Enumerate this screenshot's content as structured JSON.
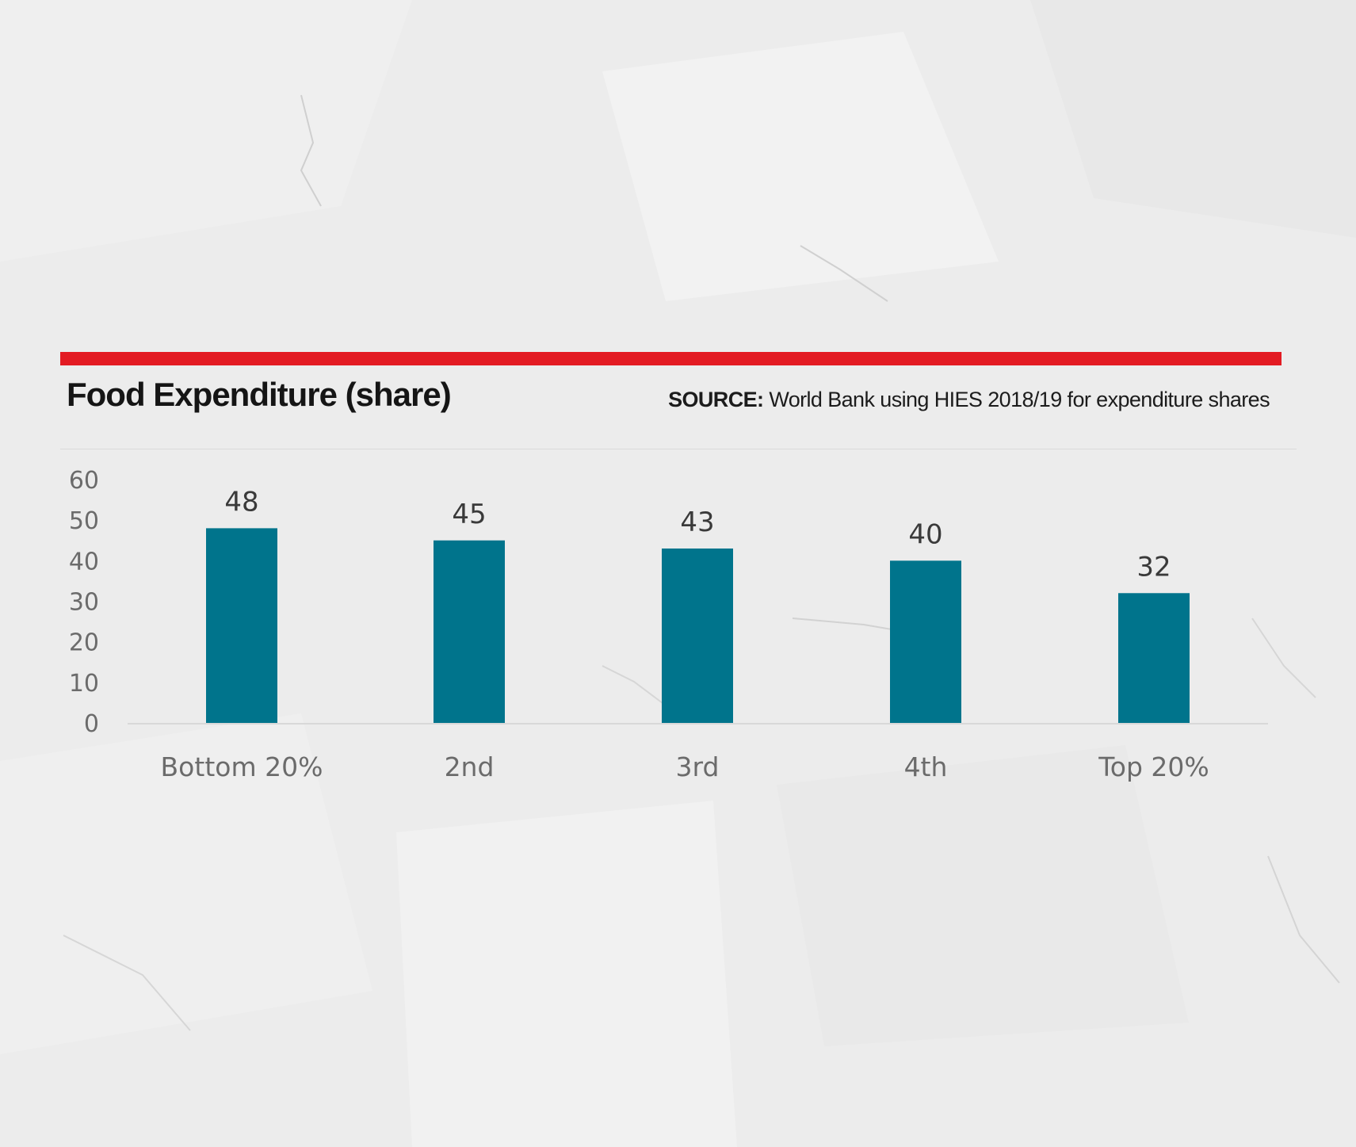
{
  "title": "Food Expenditure (share)",
  "source": {
    "label": "SOURCE:",
    "text": "World Bank using HIES 2018/19 for expenditure shares"
  },
  "colors": {
    "accent_rule": "#e31b23",
    "bar": "#00748c",
    "background": "#ececec"
  },
  "chart_data": {
    "type": "bar",
    "title": "Food Expenditure (share)",
    "categories": [
      "Bottom 20%",
      "2nd",
      "3rd",
      "4th",
      "Top 20%"
    ],
    "values": [
      48,
      45,
      43,
      40,
      32
    ],
    "ylim": [
      0,
      60
    ],
    "yticks": [
      0,
      10,
      20,
      30,
      40,
      50,
      60
    ],
    "xlabel": "",
    "ylabel": "",
    "grid": false,
    "data_labels": true
  }
}
